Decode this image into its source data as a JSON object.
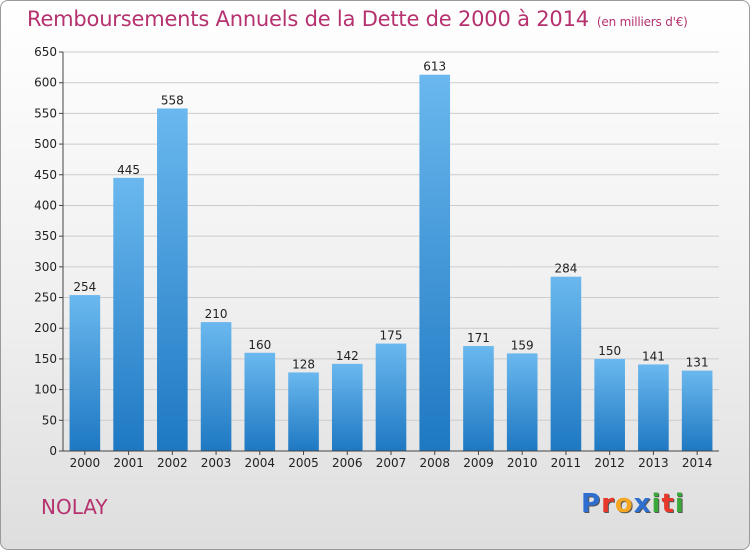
{
  "title": "Remboursements Annuels de la Dette de 2000 à 2014",
  "unit_note": "(en milliers d'€)",
  "town": "NOLAY",
  "logo": {
    "text": "Proxiti",
    "letters": [
      "P",
      "r",
      "o",
      "x",
      "i",
      "t",
      "i"
    ],
    "colors": [
      "#2f6fcf",
      "#e8382c",
      "#f5a623",
      "#2f6fcf",
      "#3aa93a",
      "#e8382c",
      "#3aa93a"
    ]
  },
  "colors": {
    "bar_top": "#6ab8ee",
    "bar_bottom": "#1e78c2",
    "title": "#b5326f",
    "grid": "#cccccc"
  },
  "chart_data": {
    "type": "bar",
    "title": "Remboursements Annuels de la Dette de 2000 à 2014",
    "xlabel": "",
    "ylabel": "",
    "ylim": [
      0,
      650
    ],
    "yticks": [
      0,
      50,
      100,
      150,
      200,
      250,
      300,
      350,
      400,
      450,
      500,
      550,
      600,
      650
    ],
    "grid": true,
    "categories": [
      "2000",
      "2001",
      "2002",
      "2003",
      "2004",
      "2005",
      "2006",
      "2007",
      "2008",
      "2009",
      "2010",
      "2011",
      "2012",
      "2013",
      "2014"
    ],
    "values": [
      254,
      445,
      558,
      210,
      160,
      128,
      142,
      175,
      613,
      171,
      159,
      284,
      150,
      141,
      131
    ]
  }
}
